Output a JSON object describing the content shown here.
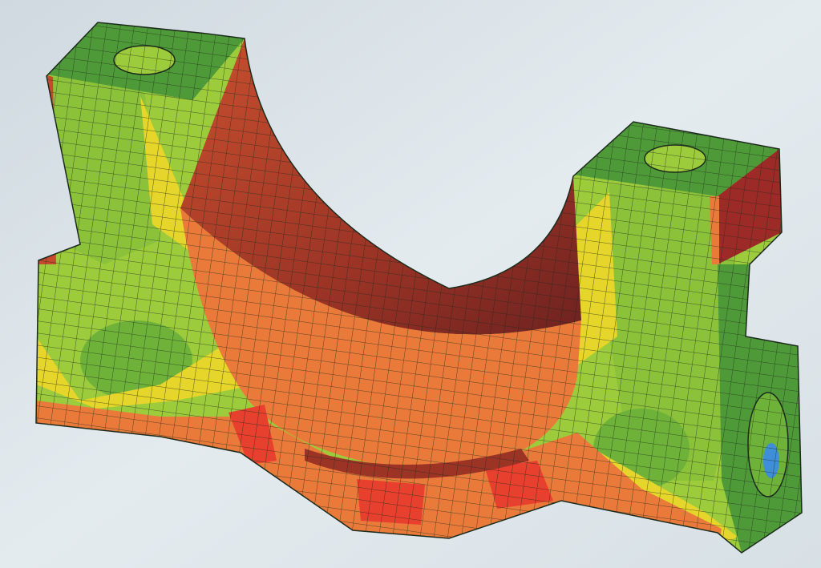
{
  "image": {
    "subject": "finite-element-mesh-contour-plot",
    "colors": {
      "background": "#dfe7ec",
      "low_stress_blue": "#3f8fd8",
      "dark_green": "#4f9a38",
      "green": "#6fb23a",
      "yellow_green": "#9ccb3c",
      "yellow": "#e6d52a",
      "orange": "#ea7a3a",
      "red": "#e8402e",
      "dark_red": "#9c3426",
      "mesh_line": "#1c2a1c"
    }
  }
}
